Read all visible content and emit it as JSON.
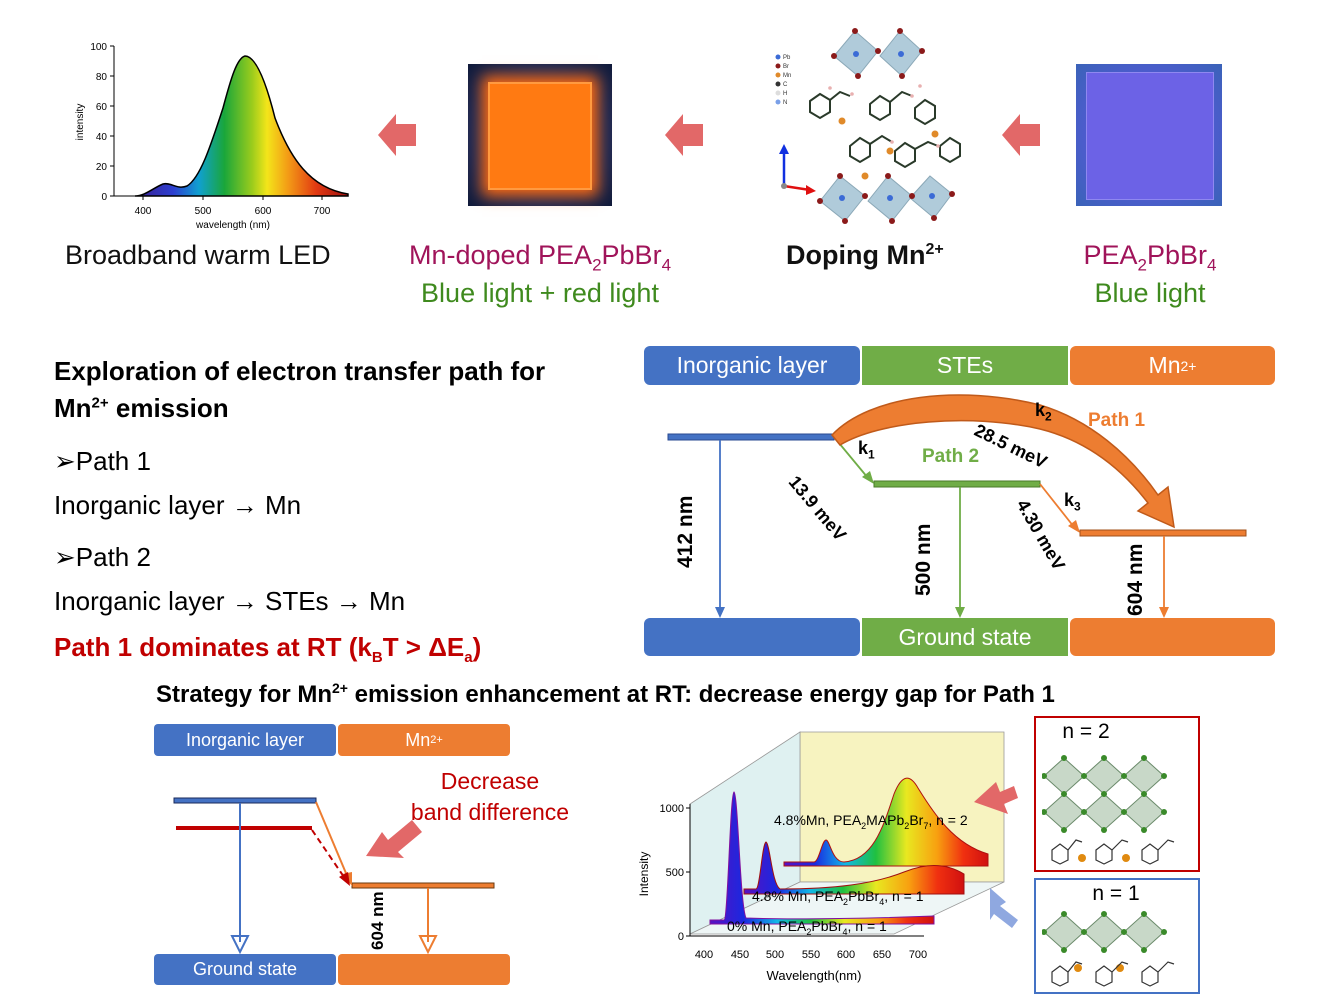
{
  "top": {
    "spectrum": {
      "ylabel": "intensity",
      "xlabel": "wavelength (nm)",
      "yticks": [
        "0",
        "20",
        "40",
        "60",
        "80",
        "100"
      ],
      "xticks": [
        "400",
        "500",
        "600",
        "700"
      ]
    },
    "caption_led": "Broadband warm  LED",
    "caption_mn_doped": "Mn-doped PEA",
    "caption_mn_doped_sub": "2",
    "caption_mn_doped_rest": "PbBr",
    "caption_mn_doped_sub2": "4",
    "caption_mn_light": "Blue light + red light",
    "caption_doping": "Doping Mn",
    "caption_doping_sup": "2+",
    "caption_pea": "PEA",
    "caption_pea_sub": "2",
    "caption_pea_rest": "PbBr",
    "caption_pea_sub2": "4",
    "caption_blue": "Blue light",
    "legend_atoms": [
      "Pb",
      "Br",
      "Mn",
      "C",
      "H",
      "N"
    ],
    "colors": {
      "arrow": "#e26868",
      "magenta": "#a0145a",
      "green": "#3f8a1e"
    }
  },
  "exploration": {
    "title1": "Exploration of electron transfer path for",
    "title2_a": "Mn",
    "title2_sup": "2+",
    "title2_b": " emission",
    "path1_label": "➢Path 1",
    "path1_desc": "Inorganic layer → Mn",
    "path2_label": "➢Path 2",
    "path2_desc": "Inorganic layer →  STEs → Mn",
    "conclusion_a": "Path 1 dominates at RT (k",
    "conclusion_sub1": "B",
    "conclusion_b": "T > ΔE",
    "conclusion_sub2": "a",
    "conclusion_c": ")"
  },
  "energy_diagram": {
    "header_inorganic": "Inorganic layer",
    "header_stes": "STEs",
    "header_mn": "Mn",
    "header_mn_sup": "2+",
    "ground_state": "Ground state",
    "k1": "k",
    "k1_sub": "1",
    "k2": "k",
    "k2_sub": "2",
    "k3": "k",
    "k3_sub": "3",
    "path1": "Path 1",
    "path2": "Path 2",
    "e_139": "13.9 meV",
    "e_285": "28.5 meV",
    "e_430": "4.30 meV",
    "wl_412": "412 nm",
    "wl_500": "500 nm",
    "wl_604": "604 nm",
    "colors": {
      "blue": "#4472c4",
      "green": "#70ad47",
      "orange": "#ed7d31"
    }
  },
  "strategy": {
    "title_a": "Strategy for Mn",
    "title_sup": "2+",
    "title_b": " emission enhancement at RT: decrease energy gap for Path 1",
    "header_inorganic": "Inorganic layer",
    "header_mn": "Mn",
    "header_mn_sup": "2+",
    "decrease1": "Decrease",
    "decrease2": "band difference",
    "wl_604": "604 nm",
    "ground_state": "Ground state"
  },
  "spectra3d": {
    "ylabel": "Intensity",
    "xlabel": "Wavelength(nm)",
    "yticks": [
      "0",
      "500",
      "1000"
    ],
    "xticks": [
      "400",
      "450",
      "500",
      "550",
      "600",
      "650",
      "700"
    ],
    "s3_a": "4.8%Mn, PEA",
    "s3_sub": "2",
    "s3_b": "MAPb",
    "s3_sub2": "2",
    "s3_c": "Br",
    "s3_sub3": "7",
    "s3_d": ", n = 2",
    "s2_a": "4.8% Mn, PEA",
    "s2_sub": "2",
    "s2_b": "PbBr",
    "s2_sub2": "4",
    "s2_c": ", n = 1",
    "s1_a": "0% Mn, PEA",
    "s1_sub": "2",
    "s1_b": "PbBr",
    "s1_sub2": "4",
    "s1_c": ", n = 1"
  },
  "structures": {
    "n2": "n = 2",
    "n1": "n = 1"
  }
}
